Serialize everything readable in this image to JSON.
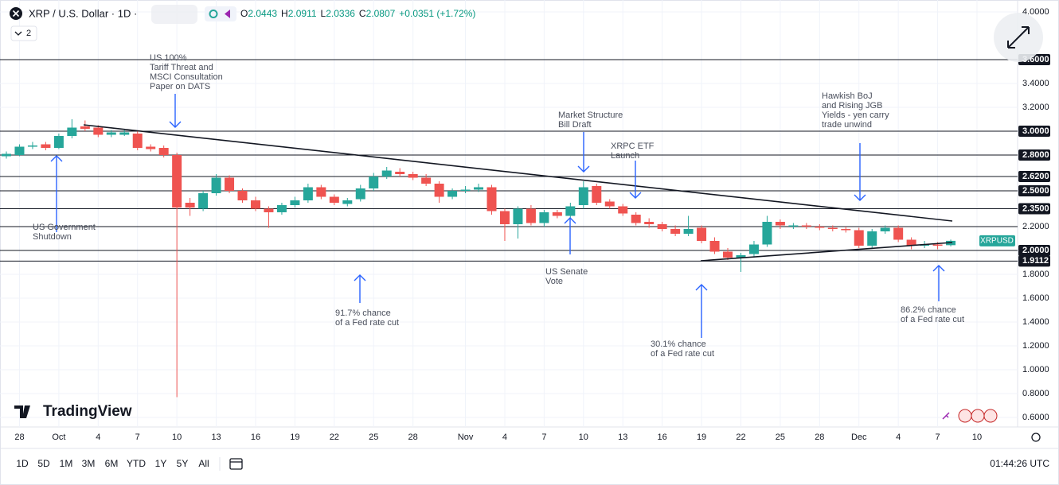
{
  "header": {
    "symbol": "XRP / U.S. Dollar · 1D ·",
    "ohlc_keys": [
      "O",
      "H",
      "L",
      "C"
    ],
    "change": "+0.0351 (+1.72%)",
    "indicators": "2"
  },
  "chart_data": {
    "type": "candlestick",
    "name": "XRPUSD",
    "categories": [
      null,
      "28",
      null,
      null,
      "Oct",
      null,
      null,
      "4",
      null,
      null,
      "7",
      null,
      null,
      "10",
      null,
      null,
      "13",
      null,
      null,
      "16",
      null,
      null,
      "19",
      null,
      null,
      "22",
      null,
      null,
      "25",
      null,
      null,
      "28",
      null,
      null,
      null,
      "Nov",
      null,
      null,
      "4",
      null,
      null,
      "7",
      null,
      null,
      "10",
      null,
      null,
      "13",
      null,
      null,
      "16",
      null,
      null,
      "19",
      null,
      null,
      "22",
      null,
      null,
      "25",
      null,
      null,
      "28",
      null,
      null,
      "Dec",
      null,
      null,
      "4",
      null,
      null,
      "7",
      null,
      null,
      "10"
    ],
    "open": [
      2.79,
      2.8,
      2.87,
      2.89,
      2.86,
      2.96,
      3.04,
      3.03,
      2.97,
      2.97,
      2.98,
      2.87,
      2.86,
      2.8,
      2.4,
      2.35,
      2.48,
      2.61,
      2.5,
      2.42,
      2.35,
      2.32,
      2.38,
      2.42,
      2.53,
      2.45,
      2.39,
      2.43,
      2.52,
      2.62,
      2.66,
      2.64,
      2.61,
      2.56,
      2.45,
      2.5,
      2.51,
      2.53,
      2.33,
      2.22,
      2.35,
      2.23,
      2.32,
      2.29,
      2.38,
      2.54,
      2.41,
      2.37,
      2.3,
      2.24,
      2.22,
      2.18,
      2.14,
      2.19,
      2.08,
      1.99,
      1.94,
      1.97,
      2.05,
      2.24,
      2.2,
      2.21,
      2.2,
      2.19,
      2.18,
      2.17,
      2.04,
      2.16,
      2.19,
      2.09,
      2.04,
      2.05,
      2.0443,
      null,
      null
    ],
    "high": [
      2.83,
      2.89,
      2.91,
      2.91,
      2.98,
      3.1,
      3.09,
      3.05,
      3.01,
      3.02,
      3.0,
      2.89,
      2.88,
      2.82,
      2.44,
      2.5,
      2.64,
      2.63,
      2.52,
      2.45,
      2.37,
      2.4,
      2.45,
      2.56,
      2.55,
      2.47,
      2.44,
      2.55,
      2.65,
      2.7,
      2.69,
      2.66,
      2.64,
      2.58,
      2.52,
      2.54,
      2.56,
      2.55,
      2.35,
      2.37,
      2.38,
      2.34,
      2.34,
      2.4,
      2.58,
      2.56,
      2.43,
      2.39,
      2.32,
      2.27,
      2.24,
      2.21,
      2.29,
      2.21,
      2.11,
      2.02,
      1.98,
      2.08,
      2.29,
      2.26,
      2.23,
      2.23,
      2.22,
      2.21,
      2.2,
      2.19,
      2.18,
      2.21,
      2.21,
      2.11,
      2.08,
      2.07,
      2.0911,
      null,
      null
    ],
    "low": [
      2.77,
      2.79,
      2.85,
      2.84,
      2.85,
      2.94,
      3.0,
      2.95,
      2.95,
      2.96,
      2.84,
      2.83,
      2.78,
      0.77,
      2.29,
      2.33,
      2.46,
      2.48,
      2.4,
      2.33,
      2.19,
      2.3,
      2.36,
      2.4,
      2.43,
      2.38,
      2.37,
      2.41,
      2.5,
      2.6,
      2.62,
      2.59,
      2.54,
      2.4,
      2.43,
      2.48,
      2.49,
      2.3,
      2.08,
      2.1,
      2.21,
      2.2,
      2.27,
      2.27,
      2.35,
      2.38,
      2.35,
      2.29,
      2.21,
      2.19,
      2.16,
      2.12,
      2.12,
      2.06,
      1.97,
      1.92,
      1.82,
      1.94,
      2.03,
      2.18,
      2.18,
      2.18,
      2.17,
      2.16,
      2.15,
      2.02,
      2.02,
      2.14,
      2.07,
      2.01,
      2.02,
      2.01,
      2.0336,
      null,
      null
    ],
    "close": [
      2.81,
      2.87,
      2.88,
      2.86,
      2.96,
      3.03,
      3.02,
      2.97,
      2.99,
      2.99,
      2.86,
      2.85,
      2.8,
      2.36,
      2.36,
      2.48,
      2.61,
      2.5,
      2.42,
      2.35,
      2.32,
      2.38,
      2.42,
      2.53,
      2.45,
      2.4,
      2.42,
      2.52,
      2.62,
      2.67,
      2.64,
      2.61,
      2.56,
      2.45,
      2.5,
      2.51,
      2.53,
      2.33,
      2.22,
      2.35,
      2.23,
      2.32,
      2.29,
      2.37,
      2.53,
      2.4,
      2.37,
      2.31,
      2.23,
      2.22,
      2.18,
      2.14,
      2.18,
      2.08,
      1.99,
      1.94,
      1.96,
      2.05,
      2.24,
      2.21,
      2.21,
      2.2,
      2.19,
      2.18,
      2.17,
      2.04,
      2.16,
      2.19,
      2.09,
      2.04,
      2.05,
      2.04,
      2.0807,
      null,
      null
    ],
    "up_color": "#26a69a",
    "down_color": "#ef5350",
    "ylim": [
      0.52,
      4.1
    ],
    "yticks": [
      {
        "value": 4.0,
        "label": "4.0000"
      },
      {
        "value": 3.4,
        "label": "3.4000"
      },
      {
        "value": 3.2,
        "label": "3.2000"
      },
      {
        "value": 1.8,
        "label": "1.8000"
      },
      {
        "value": 1.6,
        "label": "1.6000"
      },
      {
        "value": 1.4,
        "label": "1.4000"
      },
      {
        "value": 1.2,
        "label": "1.2000"
      },
      {
        "value": 1.0,
        "label": "1.0000"
      },
      {
        "value": 0.8,
        "label": "0.8000"
      },
      {
        "value": 0.6,
        "label": "0.6000"
      }
    ],
    "levels": [
      {
        "value": 3.6,
        "label": "3.6000",
        "boxed": true
      },
      {
        "value": 3.0,
        "label": "3.0000",
        "boxed": true
      },
      {
        "value": 2.8,
        "label": "2.8000",
        "boxed": true
      },
      {
        "value": 2.62,
        "label": "2.6200",
        "boxed": true
      },
      {
        "value": 2.5,
        "label": "2.5000",
        "boxed": true
      },
      {
        "value": 2.35,
        "label": "2.3500",
        "boxed": true
      },
      {
        "value": 2.2,
        "label": "2.2000",
        "boxed": false
      },
      {
        "value": 2.0,
        "label": "2.0000",
        "boxed": true
      },
      {
        "value": 1.9112,
        "label": "1.9112",
        "boxed": true
      }
    ],
    "grid": true,
    "annotations": [
      {
        "lines": [
          "US 100%",
          "Tariff Threat and",
          "MSCI Consultation",
          "Paper on DATS"
        ]
      },
      {
        "lines": [
          "Market Structure",
          "Bill Draft"
        ]
      },
      {
        "lines": [
          "XRPC ETF",
          "Launch"
        ]
      },
      {
        "lines": [
          "Hawkish BoJ",
          "and Rising JGB",
          "Yields - yen carry",
          "trade unwind"
        ]
      },
      {
        "lines": [
          "US Government",
          "Shutdown"
        ]
      },
      {
        "lines": [
          "US Senate",
          "Vote"
        ]
      },
      {
        "lines": [
          "91.7% chance",
          "of a Fed rate cut"
        ]
      },
      {
        "lines": [
          "30.1% chance",
          "of a Fed rate cut"
        ]
      },
      {
        "lines": [
          "86.2% chance",
          "of a Fed rate cut"
        ]
      }
    ]
  },
  "logo": "TradingView",
  "toolbar": {
    "ranges": [
      "1D",
      "5D",
      "1M",
      "3M",
      "6M",
      "YTD",
      "1Y",
      "5Y",
      "All"
    ],
    "clock": "01:44:26 UTC"
  }
}
